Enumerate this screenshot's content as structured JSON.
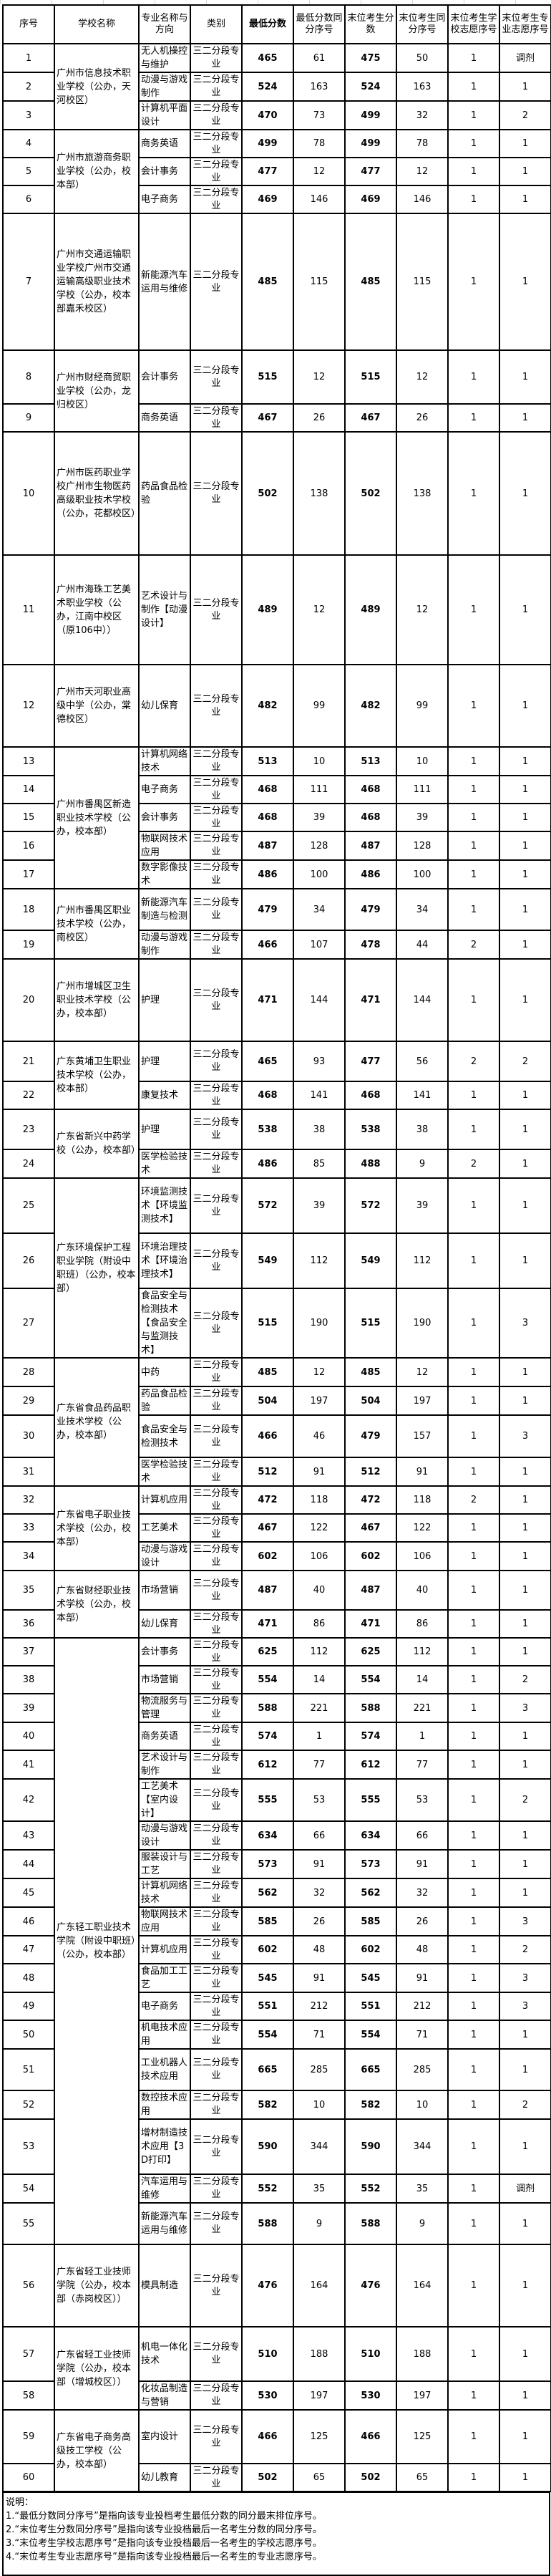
{
  "headers": [
    "序号",
    "学校名称",
    "专业名称与方向",
    "类别",
    "最低分数",
    "最低分数同分序号",
    "末位考生分数",
    "末位考生同分序号",
    "末位考生学校志愿序号",
    "末位考生专业志愿序号"
  ],
  "type_label": "三二分段专业",
  "schools": [
    {
      "name": "广州市信息技术职业学校（公办，天河校区）",
      "rows": [
        {
          "no": "1",
          "major": "无人机操控与维护",
          "min": "465",
          "min_rank": "61",
          "last": "475",
          "last_rank": "50",
          "school_pref": "1",
          "major_pref": "调剂"
        },
        {
          "no": "2",
          "major": "动漫与游戏制作",
          "min": "524",
          "min_rank": "163",
          "last": "524",
          "last_rank": "163",
          "school_pref": "1",
          "major_pref": "1"
        },
        {
          "no": "3",
          "major": "计算机平面设计",
          "min": "470",
          "min_rank": "73",
          "last": "499",
          "last_rank": "32",
          "school_pref": "1",
          "major_pref": "2"
        }
      ]
    },
    {
      "name": "广州市旅游商务职业学校（公办，校本部）",
      "rows": [
        {
          "no": "4",
          "major": "商务英语",
          "min": "499",
          "min_rank": "78",
          "last": "499",
          "last_rank": "78",
          "school_pref": "1",
          "major_pref": "1"
        },
        {
          "no": "5",
          "major": "会计事务",
          "min": "477",
          "min_rank": "12",
          "last": "477",
          "last_rank": "12",
          "school_pref": "1",
          "major_pref": "1"
        },
        {
          "no": "6",
          "major": "电子商务",
          "min": "469",
          "min_rank": "146",
          "last": "469",
          "last_rank": "146",
          "school_pref": "1",
          "major_pref": "1"
        }
      ]
    },
    {
      "name": "广州市交通运输职业学校广州市交通运输高级职业技术学校（公办，校本部嘉禾校区）",
      "rows": [
        {
          "no": "7",
          "major": "新能源汽车运用与维修",
          "min": "485",
          "min_rank": "115",
          "last": "485",
          "last_rank": "115",
          "school_pref": "1",
          "major_pref": "1"
        }
      ]
    },
    {
      "name": "广州市财经商贸职业学校（公办，龙归校区）",
      "rows": [
        {
          "no": "8",
          "major": "会计事务",
          "min": "515",
          "min_rank": "12",
          "last": "515",
          "last_rank": "12",
          "school_pref": "1",
          "major_pref": "1"
        },
        {
          "no": "9",
          "major": "商务英语",
          "min": "467",
          "min_rank": "26",
          "last": "467",
          "last_rank": "26",
          "school_pref": "1",
          "major_pref": "1"
        }
      ]
    },
    {
      "name": "广州市医药职业学校广州市生物医药高级职业技术学校（公办，花都校区）",
      "rows": [
        {
          "no": "10",
          "major": "药品食品检验",
          "min": "502",
          "min_rank": "138",
          "last": "502",
          "last_rank": "138",
          "school_pref": "1",
          "major_pref": "1"
        }
      ]
    },
    {
      "name": "广州市海珠工艺美术职业学校（公办，江南中校区（原106中））",
      "rows": [
        {
          "no": "11",
          "major": "艺术设计与制作【动漫设计】",
          "min": "489",
          "min_rank": "12",
          "last": "489",
          "last_rank": "12",
          "school_pref": "1",
          "major_pref": "1"
        }
      ]
    },
    {
      "name": "广州市天河职业高级中学（公办，棠德校区）",
      "rows": [
        {
          "no": "12",
          "major": "幼儿保育",
          "min": "482",
          "min_rank": "99",
          "last": "482",
          "last_rank": "99",
          "school_pref": "1",
          "major_pref": "1"
        }
      ]
    },
    {
      "name": "广州市番禺区新造职业技术学校（公办，校本部）",
      "rows": [
        {
          "no": "13",
          "major": "计算机网络技术",
          "min": "513",
          "min_rank": "10",
          "last": "513",
          "last_rank": "10",
          "school_pref": "1",
          "major_pref": "1"
        },
        {
          "no": "14",
          "major": "电子商务",
          "min": "468",
          "min_rank": "111",
          "last": "468",
          "last_rank": "111",
          "school_pref": "1",
          "major_pref": "1"
        },
        {
          "no": "15",
          "major": "会计事务",
          "min": "468",
          "min_rank": "39",
          "last": "468",
          "last_rank": "39",
          "school_pref": "1",
          "major_pref": "1"
        },
        {
          "no": "16",
          "major": "物联网技术应用",
          "min": "487",
          "min_rank": "128",
          "last": "487",
          "last_rank": "128",
          "school_pref": "1",
          "major_pref": "1"
        },
        {
          "no": "17",
          "major": "数字影像技术",
          "min": "486",
          "min_rank": "100",
          "last": "486",
          "last_rank": "100",
          "school_pref": "1",
          "major_pref": "1"
        }
      ]
    },
    {
      "name": "广州市番禺区职业技术学校（公办，南校区）",
      "rows": [
        {
          "no": "18",
          "major": "新能源汽车制造与检测",
          "min": "479",
          "min_rank": "34",
          "last": "479",
          "last_rank": "34",
          "school_pref": "1",
          "major_pref": "1"
        },
        {
          "no": "19",
          "major": "动漫与游戏制作",
          "min": "466",
          "min_rank": "107",
          "last": "478",
          "last_rank": "44",
          "school_pref": "2",
          "major_pref": "1"
        }
      ]
    },
    {
      "name": "广州市增城区卫生职业技术学校（公办，校本部）",
      "rows": [
        {
          "no": "20",
          "major": "护理",
          "min": "471",
          "min_rank": "144",
          "last": "471",
          "last_rank": "144",
          "school_pref": "1",
          "major_pref": "1"
        }
      ]
    },
    {
      "name": "广东黄埔卫生职业技术学校（公办，校本部）",
      "rows": [
        {
          "no": "21",
          "major": "护理",
          "min": "465",
          "min_rank": "93",
          "last": "477",
          "last_rank": "56",
          "school_pref": "2",
          "major_pref": "2"
        },
        {
          "no": "22",
          "major": "康复技术",
          "min": "468",
          "min_rank": "141",
          "last": "468",
          "last_rank": "141",
          "school_pref": "1",
          "major_pref": "1"
        }
      ]
    },
    {
      "name": "广东省新兴中药学校（公办，校本部）",
      "rows": [
        {
          "no": "23",
          "major": "护理",
          "min": "538",
          "min_rank": "38",
          "last": "538",
          "last_rank": "38",
          "school_pref": "1",
          "major_pref": "1"
        },
        {
          "no": "24",
          "major": "医学检验技术",
          "min": "486",
          "min_rank": "85",
          "last": "488",
          "last_rank": "9",
          "school_pref": "2",
          "major_pref": "1"
        }
      ]
    },
    {
      "name": "广东环境保护工程职业学院（附设中职班）（公办，校本部）",
      "rows": [
        {
          "no": "25",
          "major": "环境监测技术【环境监测技术】",
          "min": "572",
          "min_rank": "39",
          "last": "572",
          "last_rank": "39",
          "school_pref": "1",
          "major_pref": "1"
        },
        {
          "no": "26",
          "major": "环境治理技术【环境治理技术】",
          "min": "549",
          "min_rank": "112",
          "last": "549",
          "last_rank": "112",
          "school_pref": "1",
          "major_pref": "1"
        },
        {
          "no": "27",
          "major": "食品安全与检测技术【食品安全与监测技术】",
          "min": "515",
          "min_rank": "190",
          "last": "515",
          "last_rank": "190",
          "school_pref": "1",
          "major_pref": "3"
        }
      ]
    },
    {
      "name": "广东省食品药品职业技术学校（公办，校本部）",
      "rows": [
        {
          "no": "28",
          "major": "中药",
          "min": "485",
          "min_rank": "12",
          "last": "485",
          "last_rank": "12",
          "school_pref": "1",
          "major_pref": "1"
        },
        {
          "no": "29",
          "major": "药品食品检验",
          "min": "504",
          "min_rank": "197",
          "last": "504",
          "last_rank": "197",
          "school_pref": "1",
          "major_pref": "1"
        },
        {
          "no": "30",
          "major": "食品安全与检测技术",
          "min": "466",
          "min_rank": "46",
          "last": "479",
          "last_rank": "157",
          "school_pref": "1",
          "major_pref": "3"
        },
        {
          "no": "31",
          "major": "医学检验技术",
          "min": "512",
          "min_rank": "91",
          "last": "512",
          "last_rank": "91",
          "school_pref": "1",
          "major_pref": "1"
        }
      ]
    },
    {
      "name": "广东省电子职业技术学校（公办，校本部）",
      "rows": [
        {
          "no": "32",
          "major": "计算机应用",
          "min": "472",
          "min_rank": "118",
          "last": "472",
          "last_rank": "118",
          "school_pref": "2",
          "major_pref": "1"
        },
        {
          "no": "33",
          "major": "工艺美术",
          "min": "467",
          "min_rank": "122",
          "last": "467",
          "last_rank": "122",
          "school_pref": "1",
          "major_pref": "1"
        },
        {
          "no": "34",
          "major": "动漫与游戏设计",
          "min": "602",
          "min_rank": "106",
          "last": "602",
          "last_rank": "106",
          "school_pref": "1",
          "major_pref": "1"
        }
      ]
    },
    {
      "name": "广东省财经职业技术学校（公办，校本部）",
      "rows": [
        {
          "no": "35",
          "major": "市场营销",
          "min": "487",
          "min_rank": "40",
          "last": "487",
          "last_rank": "40",
          "school_pref": "1",
          "major_pref": "1"
        },
        {
          "no": "36",
          "major": "幼儿保育",
          "min": "471",
          "min_rank": "86",
          "last": "471",
          "last_rank": "86",
          "school_pref": "1",
          "major_pref": "1"
        }
      ]
    },
    {
      "name": "广东轻工职业技术学院（附设中职班）（公办，校本部）",
      "rows": [
        {
          "no": "37",
          "major": "会计事务",
          "min": "625",
          "min_rank": "112",
          "last": "625",
          "last_rank": "112",
          "school_pref": "1",
          "major_pref": "1"
        },
        {
          "no": "38",
          "major": "市场营销",
          "min": "554",
          "min_rank": "14",
          "last": "554",
          "last_rank": "14",
          "school_pref": "1",
          "major_pref": "2"
        },
        {
          "no": "39",
          "major": "物流服务与管理",
          "min": "588",
          "min_rank": "221",
          "last": "588",
          "last_rank": "221",
          "school_pref": "1",
          "major_pref": "3"
        },
        {
          "no": "40",
          "major": "商务英语",
          "min": "574",
          "min_rank": "1",
          "last": "574",
          "last_rank": "1",
          "school_pref": "1",
          "major_pref": "1"
        },
        {
          "no": "41",
          "major": "艺术设计与制作",
          "min": "612",
          "min_rank": "77",
          "last": "612",
          "last_rank": "77",
          "school_pref": "1",
          "major_pref": "1"
        },
        {
          "no": "42",
          "major": "工艺美术【室内设计】",
          "min": "555",
          "min_rank": "53",
          "last": "555",
          "last_rank": "53",
          "school_pref": "1",
          "major_pref": "2"
        },
        {
          "no": "43",
          "major": "动漫与游戏设计",
          "min": "634",
          "min_rank": "66",
          "last": "634",
          "last_rank": "66",
          "school_pref": "1",
          "major_pref": "1"
        },
        {
          "no": "44",
          "major": "服装设计与工艺",
          "min": "573",
          "min_rank": "91",
          "last": "573",
          "last_rank": "91",
          "school_pref": "1",
          "major_pref": "1"
        },
        {
          "no": "45",
          "major": "计算机网络技术",
          "min": "562",
          "min_rank": "32",
          "last": "562",
          "last_rank": "32",
          "school_pref": "1",
          "major_pref": "1"
        },
        {
          "no": "46",
          "major": "物联网技术应用",
          "min": "585",
          "min_rank": "26",
          "last": "585",
          "last_rank": "26",
          "school_pref": "1",
          "major_pref": "3"
        },
        {
          "no": "47",
          "major": "计算机应用",
          "min": "602",
          "min_rank": "48",
          "last": "602",
          "last_rank": "48",
          "school_pref": "1",
          "major_pref": "2"
        },
        {
          "no": "48",
          "major": "食品加工工艺",
          "min": "545",
          "min_rank": "91",
          "last": "545",
          "last_rank": "91",
          "school_pref": "1",
          "major_pref": "3"
        },
        {
          "no": "49",
          "major": "电子商务",
          "min": "551",
          "min_rank": "212",
          "last": "551",
          "last_rank": "212",
          "school_pref": "1",
          "major_pref": "3"
        },
        {
          "no": "50",
          "major": "机电技术应用",
          "min": "554",
          "min_rank": "71",
          "last": "554",
          "last_rank": "71",
          "school_pref": "1",
          "major_pref": "1"
        },
        {
          "no": "51",
          "major": "工业机器人技术应用",
          "min": "665",
          "min_rank": "285",
          "last": "665",
          "last_rank": "285",
          "school_pref": "1",
          "major_pref": "1"
        },
        {
          "no": "52",
          "major": "数控技术应用",
          "min": "582",
          "min_rank": "10",
          "last": "582",
          "last_rank": "10",
          "school_pref": "1",
          "major_pref": "2"
        },
        {
          "no": "53",
          "major": "增材制造技术应用【3D打印】",
          "min": "590",
          "min_rank": "344",
          "last": "590",
          "last_rank": "344",
          "school_pref": "1",
          "major_pref": "1"
        },
        {
          "no": "54",
          "major": "汽车运用与维修",
          "min": "552",
          "min_rank": "35",
          "last": "552",
          "last_rank": "35",
          "school_pref": "1",
          "major_pref": "调剂"
        },
        {
          "no": "55",
          "major": "新能源汽车运用与维修",
          "min": "588",
          "min_rank": "9",
          "last": "588",
          "last_rank": "9",
          "school_pref": "1",
          "major_pref": "1"
        }
      ]
    },
    {
      "name": "广东省轻工业技师学院（公办，校本部（赤岗校区））",
      "rows": [
        {
          "no": "56",
          "major": "模具制造",
          "min": "476",
          "min_rank": "164",
          "last": "476",
          "last_rank": "164",
          "school_pref": "1",
          "major_pref": "1"
        }
      ]
    },
    {
      "name": "广东省轻工业技师学院（公办，校本部（增城校区））",
      "rows": [
        {
          "no": "57",
          "major": "机电一体化技术",
          "min": "510",
          "min_rank": "188",
          "last": "510",
          "last_rank": "188",
          "school_pref": "1",
          "major_pref": "1"
        },
        {
          "no": "58",
          "major": "化妆品制造与营销",
          "min": "530",
          "min_rank": "197",
          "last": "530",
          "last_rank": "197",
          "school_pref": "1",
          "major_pref": "1"
        }
      ]
    },
    {
      "name": "广东省电子商务高级技工学校（公办，校本部）",
      "rows": [
        {
          "no": "59",
          "major": "室内设计",
          "min": "466",
          "min_rank": "125",
          "last": "466",
          "last_rank": "125",
          "school_pref": "1",
          "major_pref": "1"
        },
        {
          "no": "60",
          "major": "幼儿教育",
          "min": "502",
          "min_rank": "65",
          "last": "502",
          "last_rank": "65",
          "school_pref": "1",
          "major_pref": "1"
        }
      ]
    }
  ],
  "notes": {
    "title": "说明：",
    "lines": [
      "1.“最低分数同分序号”是指向该专业投档考生最低分数的同分最末排位序号。",
      "2.“末位考生分数同分序号”是指向该专业投档最后一名考生分数的同分序号。",
      "3.“末位考生学校志愿序号”是指向该专业投档最后一名考生的学校志愿序号。",
      "4.“末位考生专业志愿序号”是指向该专业投档最后一名考生的专业志愿序号。"
    ]
  }
}
